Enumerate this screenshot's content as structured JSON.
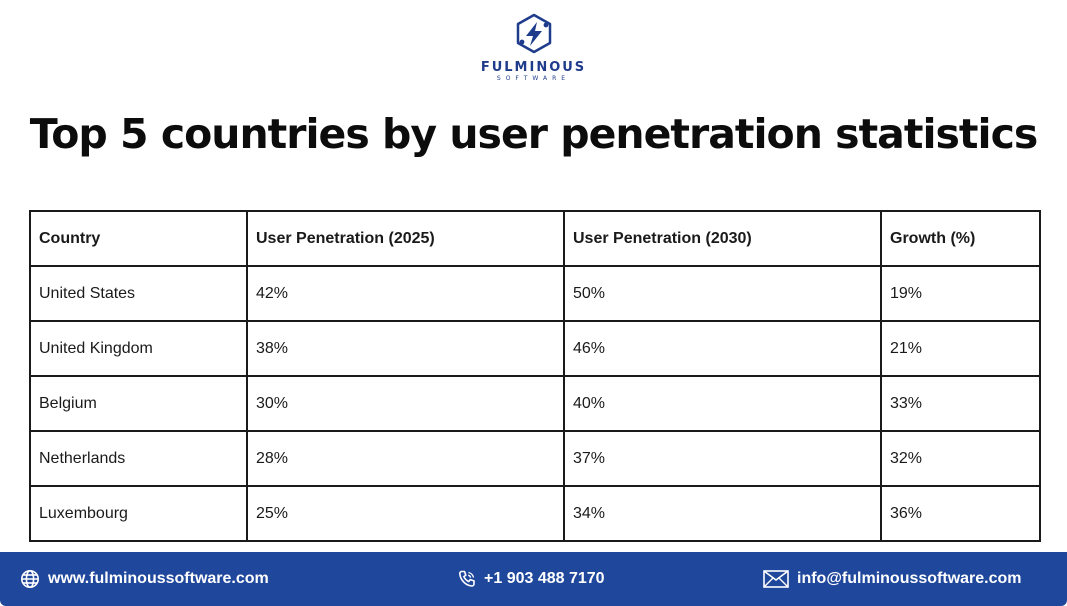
{
  "brand": {
    "name": "FULMINOUS",
    "sub": "SOFTWARE",
    "color": "#1f3c8c"
  },
  "title": "Top 5 countries by user penetration statistics",
  "table": {
    "headers": [
      "Country",
      "User Penetration (2025)",
      "User Penetration (2030)",
      "Growth (%)"
    ],
    "rows": [
      [
        "United States",
        "42%",
        "50%",
        "19%"
      ],
      [
        "United Kingdom",
        "38%",
        "46%",
        "21%"
      ],
      [
        "Belgium",
        "30%",
        "40%",
        "33%"
      ],
      [
        "Netherlands",
        "28%",
        "37%",
        "32%"
      ],
      [
        "Luxembourg",
        "25%",
        "34%",
        "36%"
      ]
    ]
  },
  "footer": {
    "website": "www.fulminoussoftware.com",
    "phone": "+1 903 488 7170",
    "email": "info@fulminoussoftware.com",
    "background": "#1f479c"
  },
  "icons": {
    "logo": "fulminous-logo-icon",
    "website": "globe-icon",
    "phone": "phone-icon",
    "email": "envelope-icon"
  }
}
